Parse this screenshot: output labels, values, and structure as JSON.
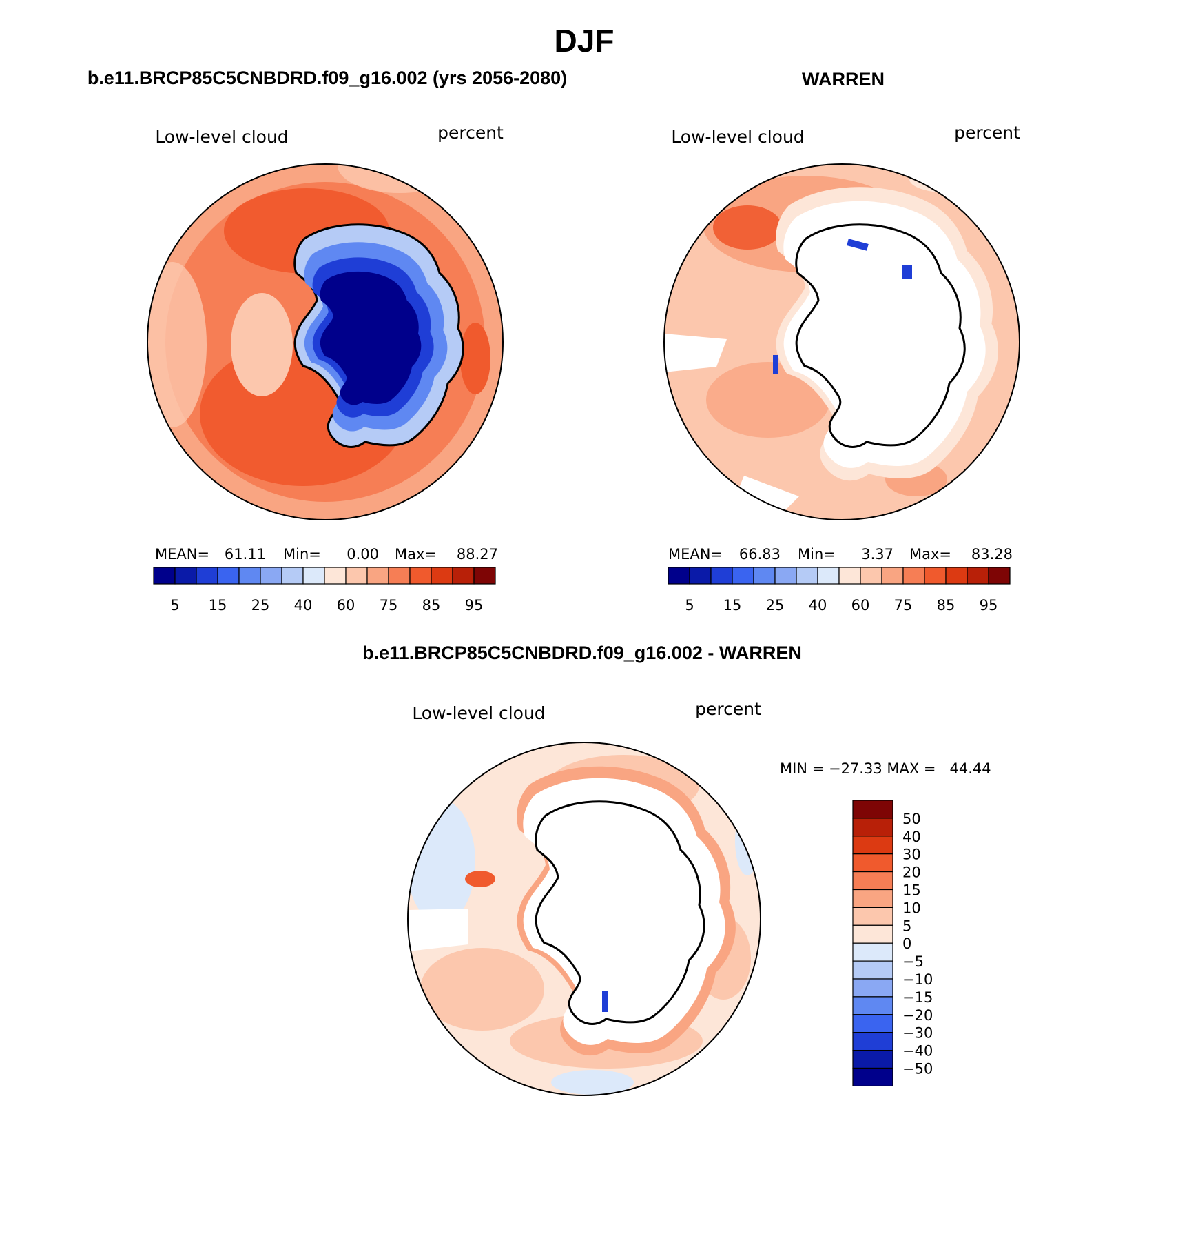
{
  "season_title": "DJF",
  "colors": {
    "abs_levels": [
      "#00008b",
      "#0a1aa8",
      "#1f3ed6",
      "#3a64f0",
      "#5f88f2",
      "#8aa8f3",
      "#b5cbf6",
      "#dce9fa",
      "#fde6d8",
      "#fcc7ad",
      "#f9a582",
      "#f67e55",
      "#f05a2d",
      "#dc3a12",
      "#b82008",
      "#7e0505"
    ],
    "diff_levels": [
      "#00008b",
      "#0a1aa8",
      "#1f3ed6",
      "#3a64f0",
      "#5f88f2",
      "#8aa8f3",
      "#b5cbf6",
      "#dce9fa",
      "#fde6d8",
      "#fcc7ad",
      "#f9a582",
      "#f67e55",
      "#f05a2d",
      "#dc3a12",
      "#b82008",
      "#7e0505"
    ],
    "land_mask": "#ffffff",
    "coast": "#000000"
  },
  "panels": {
    "case": {
      "title": "b.e11.BRCP85C5CNBDRD.f09_g16.002 (yrs 2056-2080)",
      "variable": "Low-level cloud",
      "units": "percent",
      "stats": {
        "mean_label": "MEAN=",
        "mean": "61.11",
        "min_label": "Min=",
        "min": "0.00",
        "max_label": "Max=",
        "max": "88.27"
      },
      "colorbar_ticks": [
        "5",
        "15",
        "25",
        "40",
        "60",
        "75",
        "85",
        "95"
      ]
    },
    "obs": {
      "title": "WARREN",
      "variable": "Low-level cloud",
      "units": "percent",
      "stats": {
        "mean_label": "MEAN=",
        "mean": "66.83",
        "min_label": "Min=",
        "min": "3.37",
        "max_label": "Max=",
        "max": "83.28"
      },
      "colorbar_ticks": [
        "5",
        "15",
        "25",
        "40",
        "60",
        "75",
        "85",
        "95"
      ]
    },
    "diff": {
      "title": "b.e11.BRCP85C5CNBDRD.f09_g16.002 - WARREN",
      "variable": "Low-level cloud",
      "units": "percent",
      "stats_line": "MIN = −27.33 MAX =   44.44",
      "colorbar_ticks": [
        "50",
        "40",
        "30",
        "20",
        "15",
        "10",
        "5",
        "0",
        "−5",
        "−10",
        "−15",
        "−20",
        "−30",
        "−40",
        "−50"
      ]
    }
  }
}
